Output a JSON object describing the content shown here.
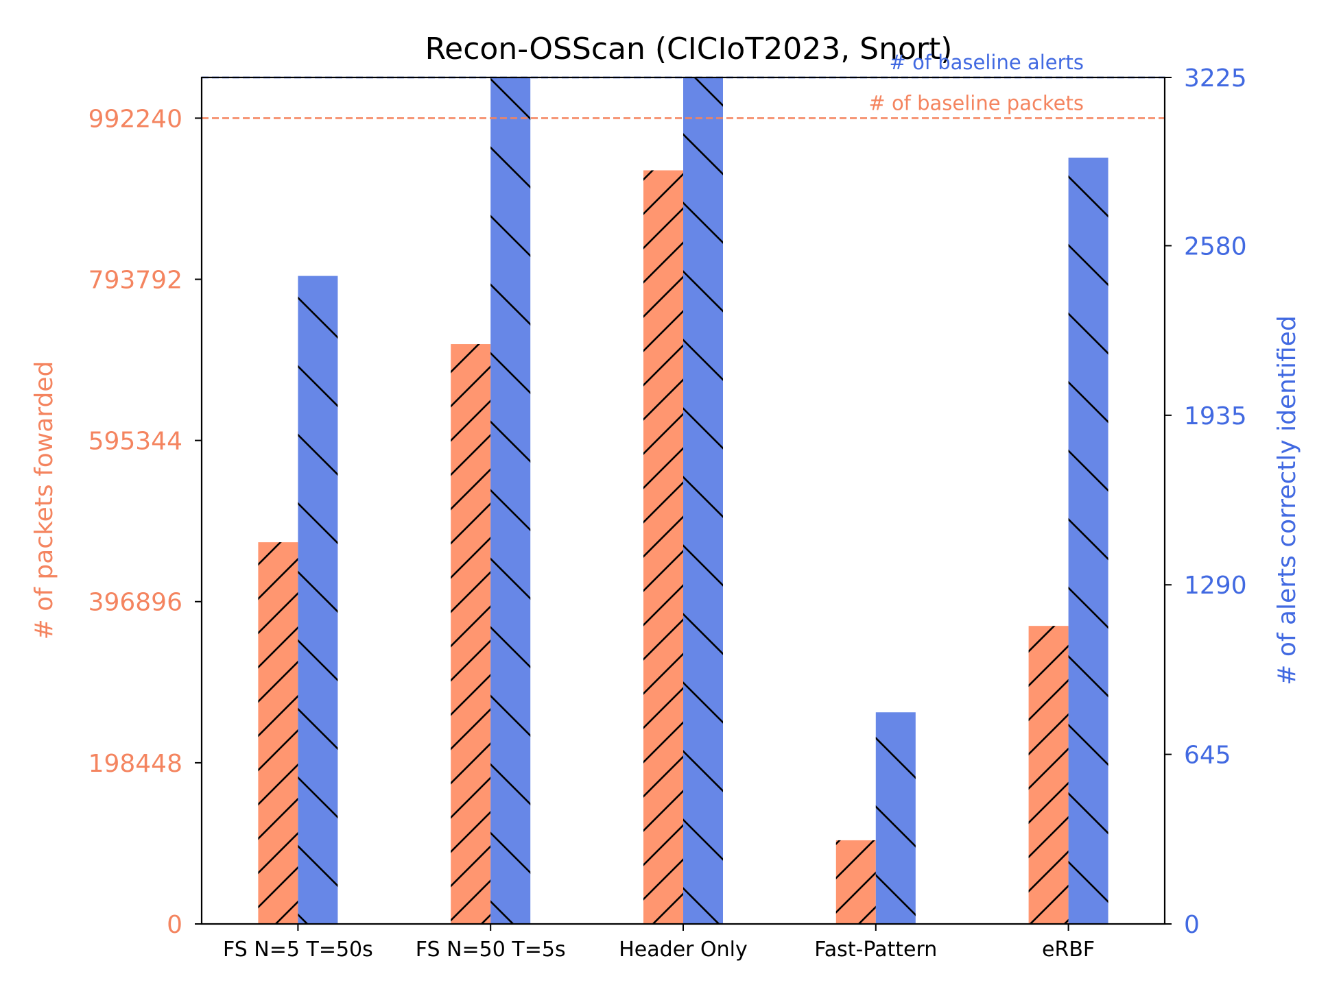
{
  "chart_data": {
    "type": "bar",
    "title": "Recon-OSScan (CICIoT2023, Snort)",
    "categories": [
      "FS N=5 T=50s",
      "FS N=50 T=5s",
      "Header Only",
      "Fast-Pattern",
      "eRBF"
    ],
    "series": [
      {
        "name": "# of packets fowarded",
        "axis": "left",
        "color": "#FF9670",
        "hatch": "/",
        "values": [
          470000,
          714000,
          928000,
          103000,
          367000
        ]
      },
      {
        "name": "# of alerts correctly identified",
        "axis": "right",
        "color": "#6787E7",
        "hatch": "\\",
        "values": [
          2465,
          3225,
          3225,
          805,
          2915
        ]
      }
    ],
    "ylabel_left": "# of packets fowarded",
    "ylabel_right": "# of alerts correctly identified",
    "ylim_left": [
      0,
      1042352
    ],
    "ylim_right": [
      0,
      3220
    ],
    "yticks_left": [
      "0",
      "198448",
      "396896",
      "595344",
      "793792",
      "992240"
    ],
    "yticks_left_values": [
      0,
      198448,
      396896,
      595344,
      793792,
      992240
    ],
    "yticks_right": [
      "0",
      "645",
      "1290",
      "1935",
      "2580",
      "3225"
    ],
    "yticks_right_values": [
      0,
      645,
      1290,
      1935,
      2580,
      3225
    ],
    "baselines": [
      {
        "label": "# of baseline packets",
        "axis": "left",
        "value": 992240,
        "color": "#F4845F"
      },
      {
        "label": "# of baseline alerts",
        "axis": "right",
        "value": 3225,
        "color": "#4169E1"
      }
    ],
    "left_axis_color": "#F4845F",
    "right_axis_color": "#4169E1",
    "grid": false,
    "legend": "none"
  }
}
